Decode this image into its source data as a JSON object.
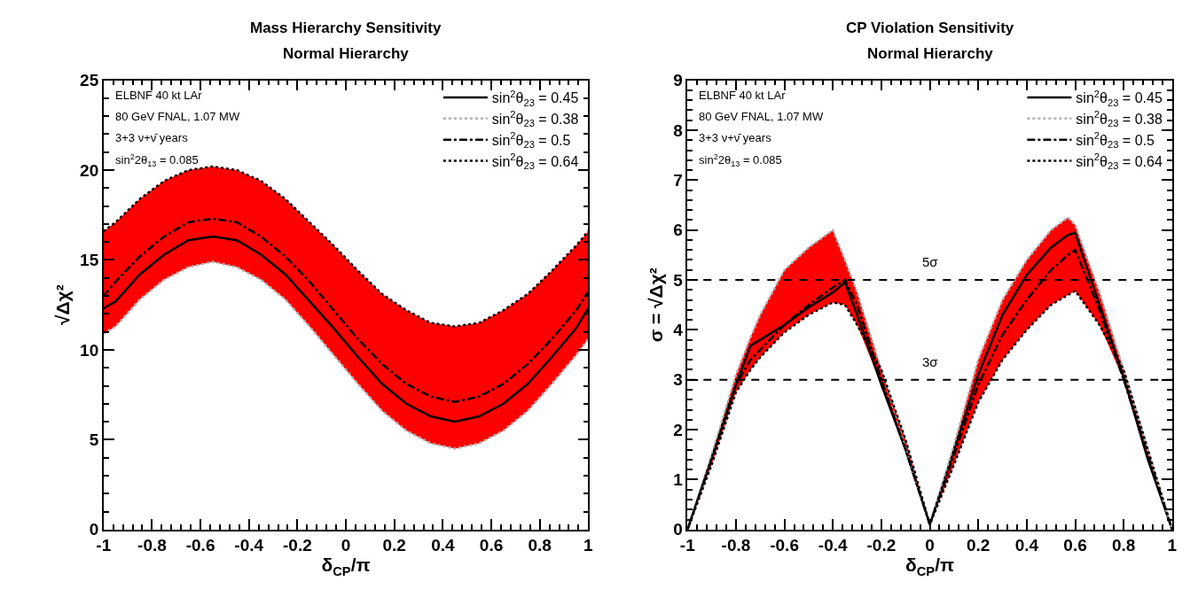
{
  "chart_data": [
    {
      "type": "line",
      "title": "Mass Hierarchy Sensitivity",
      "subtitle": "Normal Hierarchy",
      "xlabel": "δ$_{CP}$/π",
      "ylabel": "√Δχ²",
      "annotations": [
        "ELBNF 40 kt LAr",
        "80 GeV FNAL, 1.07 MW",
        "3+3 ν+ν̄ years",
        "sin$^{2}$2θ$_{13}$ = 0.085"
      ],
      "x": [
        -1,
        -0.95,
        -0.85,
        -0.75,
        -0.65,
        -0.55,
        -0.45,
        -0.35,
        -0.25,
        -0.15,
        -0.05,
        0.05,
        0.15,
        0.25,
        0.35,
        0.45,
        0.55,
        0.65,
        0.75,
        0.85,
        0.95,
        1
      ],
      "series": [
        {
          "name": "sin$^{2}$θ$_{23}$ = 0.45",
          "color": "#000000",
          "line_style": "solid",
          "values": [
            12.3,
            12.7,
            14.2,
            15.3,
            16.1,
            16.3,
            16.1,
            15.3,
            14.2,
            12.7,
            11.2,
            9.6,
            8.1,
            7.0,
            6.3,
            6.0,
            6.3,
            7.0,
            8.1,
            9.6,
            11.2,
            12.3
          ],
          "lower": [
            10.9,
            11.3,
            12.8,
            13.9,
            14.6,
            14.9,
            14.6,
            13.9,
            12.8,
            11.3,
            9.7,
            8.1,
            6.6,
            5.5,
            4.8,
            4.5,
            4.8,
            5.5,
            6.6,
            8.1,
            9.7,
            10.6
          ],
          "upper": [
            16.6,
            17.1,
            18.4,
            19.4,
            20.0,
            20.2,
            20.0,
            19.4,
            18.4,
            17.1,
            15.8,
            14.4,
            13.1,
            12.2,
            11.5,
            11.3,
            11.5,
            12.2,
            13.1,
            14.4,
            15.8,
            16.6
          ]
        },
        {
          "name": "sin$^{2}$θ$_{23}$ = 0.38",
          "color": "#b0b0b0",
          "line_style": "dotted",
          "values": [
            10.9,
            11.3,
            12.8,
            13.9,
            14.6,
            14.9,
            14.6,
            13.9,
            12.8,
            11.3,
            9.7,
            8.1,
            6.6,
            5.5,
            4.8,
            4.5,
            4.8,
            5.5,
            6.6,
            8.1,
            9.7,
            10.6
          ]
        },
        {
          "name": "sin$^{2}$θ$_{23}$ = 0.5",
          "color": "#000000",
          "line_style": "dashdot",
          "values": [
            13.0,
            13.8,
            15.2,
            16.3,
            17.1,
            17.3,
            17.1,
            16.3,
            15.2,
            13.8,
            12.2,
            10.6,
            9.2,
            8.1,
            7.4,
            7.1,
            7.4,
            8.1,
            9.2,
            10.6,
            12.2,
            13.2
          ]
        },
        {
          "name": "sin$^{2}$θ$_{23}$ = 0.64",
          "color": "#000000",
          "line_style": "dotted",
          "values": [
            16.6,
            17.1,
            18.4,
            19.4,
            20.0,
            20.2,
            20.0,
            19.4,
            18.4,
            17.1,
            15.8,
            14.4,
            13.1,
            12.2,
            11.5,
            11.3,
            11.5,
            12.2,
            13.1,
            14.4,
            15.8,
            16.6
          ]
        }
      ],
      "xlim": [
        -1,
        1
      ],
      "xticks": [
        -1,
        -0.8,
        -0.6,
        -0.4,
        -0.2,
        0,
        0.2,
        0.4,
        0.6,
        0.8,
        1
      ],
      "ylim": [
        0,
        25
      ],
      "yticks": [
        0,
        5,
        10,
        15,
        20,
        25
      ],
      "legend": "top right"
    },
    {
      "type": "line",
      "title": "CP Violation Sensitivity",
      "subtitle": "Normal Hierarchy",
      "xlabel": "δ$_{CP}$/π",
      "ylabel": "σ = √Δχ²",
      "annotations": [
        "ELBNF 40 kt LAr",
        "80 GeV FNAL, 1.07 MW",
        "3+3 ν+ν̄ years",
        "sin$^{2}$2θ$_{13}$ = 0.085"
      ],
      "x": [
        -1,
        -0.9,
        -0.8,
        -0.74,
        -0.7,
        -0.6,
        -0.5,
        -0.4,
        -0.35,
        -0.3,
        -0.2,
        -0.1,
        0,
        0.1,
        0.2,
        0.3,
        0.4,
        0.5,
        0.57,
        0.6,
        0.7,
        0.8,
        0.9,
        1
      ],
      "series": [
        {
          "name": "sin$^{2}$θ$_{23}$ = 0.45",
          "color": "#000000",
          "line_style": "solid",
          "values": [
            0,
            1.45,
            2.9,
            3.68,
            3.8,
            4.1,
            4.45,
            4.75,
            4.95,
            4.3,
            2.9,
            1.6,
            0.1,
            1.6,
            3.1,
            4.3,
            5.1,
            5.65,
            5.9,
            5.95,
            4.5,
            3.05,
            1.4,
            0
          ],
          "lower": [
            0,
            1.3,
            2.75,
            3.2,
            3.45,
            3.95,
            4.3,
            4.55,
            4.5,
            4.1,
            2.9,
            1.6,
            0.1,
            1.3,
            2.55,
            3.4,
            4.0,
            4.5,
            4.7,
            4.78,
            4.1,
            3.0,
            1.4,
            0
          ],
          "upper": [
            0,
            1.5,
            3.1,
            3.85,
            4.3,
            5.2,
            5.65,
            6.0,
            5.4,
            4.75,
            3.2,
            1.8,
            0.1,
            1.7,
            3.4,
            4.6,
            5.4,
            6.0,
            6.25,
            6.1,
            4.75,
            3.2,
            1.6,
            0
          ]
        },
        {
          "name": "sin$^{2}$θ$_{23}$ = 0.38",
          "color": "#b0b0b0",
          "line_style": "dotted",
          "values": [
            0,
            1.5,
            3.1,
            3.85,
            4.3,
            5.2,
            5.65,
            6.0,
            5.4,
            4.75,
            3.2,
            1.65,
            0.1,
            1.7,
            3.4,
            4.6,
            5.4,
            6.0,
            6.25,
            6.1,
            4.75,
            3.2,
            1.6,
            0
          ]
        },
        {
          "name": "sin$^{2}$θ$_{23}$ = 0.5",
          "color": "#000000",
          "line_style": "dashdot",
          "values": [
            0,
            1.4,
            2.9,
            3.4,
            3.6,
            4.1,
            4.5,
            4.85,
            5.0,
            4.5,
            3.0,
            1.6,
            0.1,
            1.5,
            2.9,
            3.9,
            4.6,
            5.2,
            5.5,
            5.6,
            4.4,
            3.0,
            1.5,
            0
          ]
        },
        {
          "name": "sin$^{2}$θ$_{23}$ = 0.64",
          "color": "#000000",
          "line_style": "dotted",
          "values": [
            0,
            1.3,
            2.75,
            3.2,
            3.45,
            3.95,
            4.3,
            4.55,
            4.5,
            4.1,
            3.2,
            1.8,
            0.1,
            1.3,
            2.55,
            3.4,
            4.0,
            4.5,
            4.7,
            4.78,
            4.1,
            3.2,
            1.6,
            0
          ]
        }
      ],
      "ref_lines": [
        {
          "axis": "y",
          "value": 5,
          "label": "5σ",
          "line_style": "dashed",
          "color": "#000000"
        },
        {
          "axis": "y",
          "value": 3,
          "label": "3σ",
          "line_style": "dashed",
          "color": "#000000"
        }
      ],
      "xlim": [
        -1,
        1
      ],
      "xticks": [
        -1,
        -0.8,
        -0.6,
        -0.4,
        -0.2,
        0,
        0.2,
        0.4,
        0.6,
        0.8,
        1
      ],
      "ylim": [
        0,
        9
      ],
      "yticks": [
        0,
        1,
        2,
        3,
        4,
        5,
        6,
        7,
        8,
        9
      ],
      "legend": "top right"
    }
  ]
}
